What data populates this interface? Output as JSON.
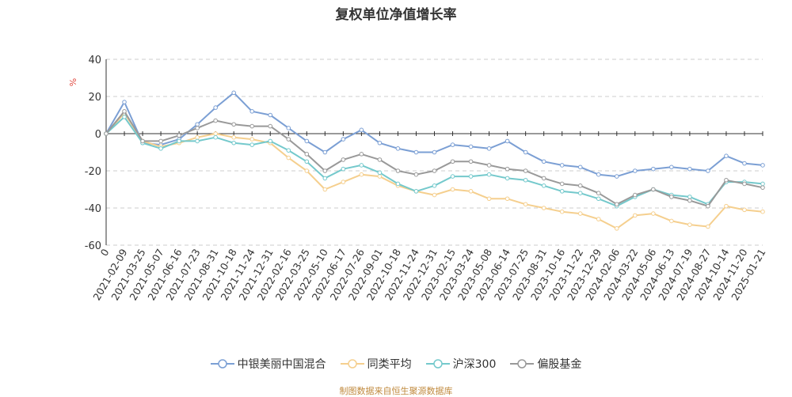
{
  "source_note": "制图数据来自恒生聚源数据库",
  "chart_data": {
    "type": "line",
    "title": "复权单位净值增长率",
    "ylabel": "%",
    "ylim": [
      -60,
      40
    ],
    "yticks": [
      40,
      20,
      0,
      -20,
      -40,
      -60
    ],
    "grid": true,
    "legend": "bottom",
    "x_tick_labels": [
      "0",
      "2021-02-09",
      "2021-03-25",
      "2021-05-07",
      "2021-06-16",
      "2021-07-23",
      "2021-08-31",
      "2021-10-18",
      "2021-11-24",
      "2021-12-31",
      "2022-02-16",
      "2022-03-25",
      "2022-05-10",
      "2022-06-17",
      "2022-07-26",
      "2022-09-01",
      "2022-10-18",
      "2022-11-24",
      "2022-12-31",
      "2023-02-15",
      "2023-03-24",
      "2023-05-08",
      "2023-06-14",
      "2023-07-25",
      "2023-08-31",
      "2023-10-16",
      "2023-11-22",
      "2023-12-29",
      "2024-02-06",
      "2024-03-22",
      "2024-05-06",
      "2024-06-13",
      "2024-07-19",
      "2024-08-27",
      "2024-10-14",
      "2024-11-20",
      "2025-01-21"
    ],
    "series": [
      {
        "name": "中银美丽中国混合",
        "color": "#7b9fd4",
        "values": [
          0,
          17,
          -5,
          -6,
          -3,
          5,
          14,
          22,
          12,
          10,
          3,
          -4,
          -10,
          -3,
          2,
          -5,
          -8,
          -10,
          -10,
          -6,
          -7,
          -8,
          -4,
          -10,
          -15,
          -17,
          -18,
          -22,
          -23,
          -20,
          -19,
          -18,
          -19,
          -20,
          -12,
          -16,
          -17
        ]
      },
      {
        "name": "同类平均",
        "color": "#f5cf8e",
        "values": [
          0,
          11,
          -4,
          -7,
          -5,
          -2,
          0,
          -2,
          -3,
          -5,
          -13,
          -20,
          -30,
          -26,
          -22,
          -23,
          -28,
          -31,
          -33,
          -30,
          -31,
          -35,
          -35,
          -38,
          -40,
          -42,
          -43,
          -46,
          -51,
          -44,
          -43,
          -47,
          -49,
          -50,
          -39,
          -41,
          -42
        ]
      },
      {
        "name": "沪深300",
        "color": "#74c9cc",
        "values": [
          0,
          9,
          -5,
          -8,
          -4,
          -4,
          -2,
          -5,
          -6,
          -4,
          -9,
          -15,
          -24,
          -19,
          -17,
          -21,
          -27,
          -31,
          -28,
          -23,
          -23,
          -22,
          -24,
          -25,
          -28,
          -31,
          -32,
          -35,
          -39,
          -34,
          -30,
          -33,
          -34,
          -38,
          -26,
          -26,
          -27
        ]
      },
      {
        "name": "偏股基金",
        "color": "#999999",
        "values": [
          0,
          12,
          -4,
          -4,
          -1,
          3,
          7,
          5,
          4,
          4,
          -3,
          -11,
          -20,
          -14,
          -11,
          -14,
          -20,
          -22,
          -20,
          -15,
          -15,
          -17,
          -19,
          -20,
          -24,
          -27,
          -28,
          -32,
          -38,
          -33,
          -30,
          -34,
          -36,
          -39,
          -25,
          -27,
          -29
        ]
      }
    ]
  }
}
